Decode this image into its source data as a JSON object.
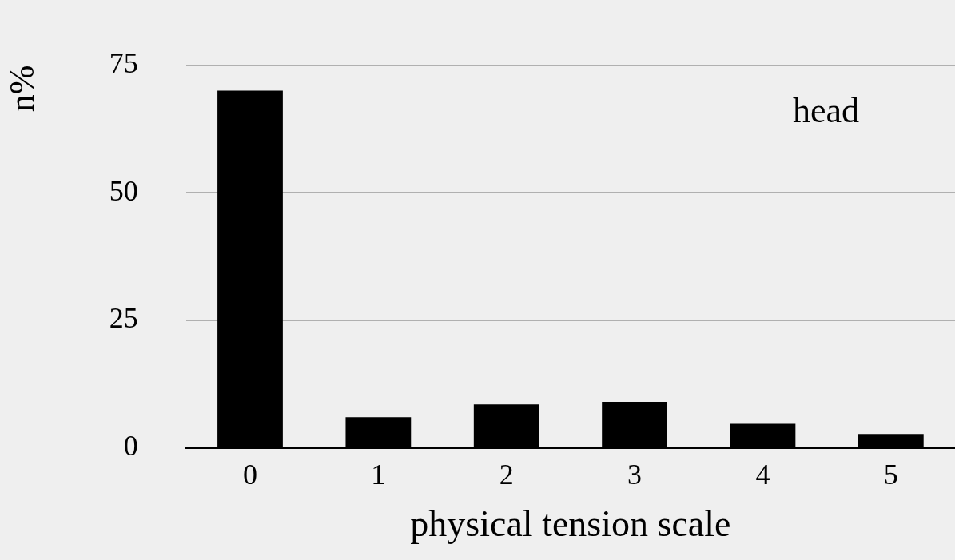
{
  "chart_data": {
    "type": "bar",
    "xlabel": "physical tension scale",
    "ylabel": "n%",
    "categories": [
      "0",
      "1",
      "2",
      "3",
      "4",
      "5"
    ],
    "values": [
      70,
      6,
      8.5,
      9,
      4.7,
      2.7
    ],
    "color": "#000000",
    "ylim": [
      0,
      75
    ],
    "yticks": [
      0,
      25,
      50,
      75
    ],
    "grid": "y",
    "legend": false,
    "annotations": [
      "head"
    ]
  }
}
